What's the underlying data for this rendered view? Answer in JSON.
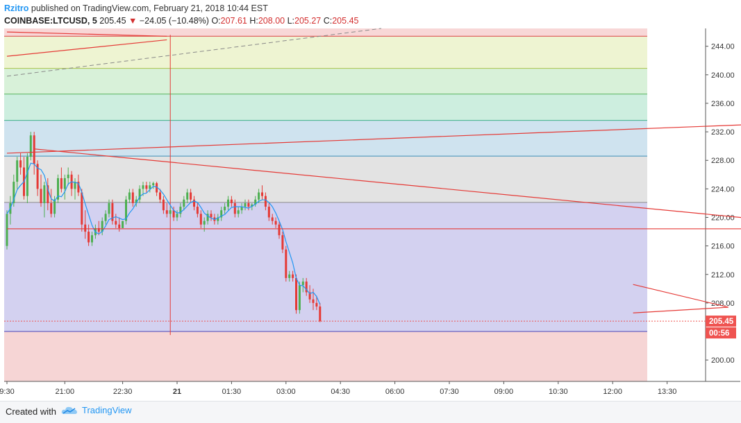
{
  "header": {
    "author": "Rzitro",
    "published": "published on TradingView.com, February 21, 2018 10:44 EST",
    "symbol": "COINBASE:LTCUSD, 5",
    "last": "205.45",
    "change_arrow": "▼",
    "change": "−24.05 (−10.48%)",
    "open_label": "O:",
    "open": "207.61",
    "high_label": "H:",
    "high": "208.00",
    "low_label": "L:",
    "low": "205.27",
    "close_label": "C:",
    "close": "205.45"
  },
  "footer": {
    "created": "Created with",
    "brand": "TradingView",
    "brand_icon": "tradingview-cloud-icon"
  },
  "colors": {
    "up": "#4caf50",
    "down": "#e53935",
    "ma": "#2196f3",
    "line": "#e53935",
    "price_tag": "#ef5350"
  },
  "chart_data": {
    "type": "candlestick",
    "ylim": [
      197,
      246.5
    ],
    "yticks": [
      "244.00",
      "240.00",
      "236.00",
      "232.00",
      "228.00",
      "224.00",
      "220.00",
      "216.00",
      "212.00",
      "208.00",
      "204.00",
      "200.00"
    ],
    "ytick_values": [
      244,
      240,
      236,
      232,
      228,
      224,
      220,
      216,
      212,
      208,
      204,
      200
    ],
    "xticks": [
      "9:30",
      "21:00",
      "22:30",
      "21",
      "01:30",
      "03:00",
      "04:30",
      "06:00",
      "07:30",
      "09:00",
      "10:30",
      "12:00",
      "13:30"
    ],
    "xtick_bars": [
      0,
      17,
      34,
      50,
      66,
      82,
      98,
      114,
      130,
      146,
      162,
      178,
      194
    ],
    "day_tick_index": 3,
    "price_label": "205.45",
    "countdown_label": "00:56",
    "fib_levels": [
      245.4,
      240.9,
      237.3,
      233.6,
      228.6,
      222.1,
      204.0
    ],
    "fib_fills": [
      "#f8d7d7",
      "#eef4d2",
      "#d8f1d9",
      "#cdeedf",
      "#cfe3ef",
      "#e3e3e3",
      "#d3d1f0",
      "#f6d5d5"
    ],
    "fib_line_colors": [
      "#d84343",
      "#a8c24b",
      "#58b45c",
      "#3fae8a",
      "#3c8fb8",
      "#8a8a8a",
      "#4b48b8"
    ],
    "candles": [
      [
        216,
        221,
        215.5,
        220.5
      ],
      [
        220.5,
        223,
        219,
        222
      ],
      [
        222,
        226,
        221.5,
        225
      ],
      [
        225,
        228.5,
        224,
        228
      ],
      [
        228,
        229,
        226,
        227
      ],
      [
        227,
        228.5,
        222.5,
        223
      ],
      [
        223,
        229,
        222,
        228.5
      ],
      [
        228.5,
        232,
        228,
        231.5
      ],
      [
        231.5,
        232,
        226,
        227.5
      ],
      [
        227.5,
        228,
        223,
        224
      ],
      [
        224,
        226,
        221.5,
        222
      ],
      [
        222,
        225,
        220,
        224.5
      ],
      [
        224.5,
        225.5,
        221,
        222
      ],
      [
        222,
        224,
        220,
        220.5
      ],
      [
        220.5,
        223,
        220,
        222.5
      ],
      [
        222.5,
        226,
        222,
        225.5
      ],
      [
        225.5,
        227,
        223.5,
        224
      ],
      [
        224,
        226,
        222.5,
        225.5
      ],
      [
        225.5,
        227,
        224.5,
        226
      ],
      [
        226,
        226.5,
        223,
        224
      ],
      [
        224,
        225.5,
        222.5,
        225
      ],
      [
        225,
        226,
        223,
        223.5
      ],
      [
        223.5,
        224,
        218,
        219
      ],
      [
        219,
        221,
        217,
        218
      ],
      [
        218,
        219,
        216,
        216.5
      ],
      [
        216.5,
        218,
        216,
        217.5
      ],
      [
        217.5,
        219,
        217,
        218.5
      ],
      [
        218.5,
        219.5,
        217.5,
        218
      ],
      [
        218,
        220,
        217.5,
        219.5
      ],
      [
        219.5,
        221,
        219,
        220.5
      ],
      [
        220.5,
        222.5,
        220,
        222
      ],
      [
        222,
        222.5,
        219,
        219.5
      ],
      [
        219.5,
        220.5,
        218.5,
        219
      ],
      [
        219,
        220,
        218,
        218.5
      ],
      [
        218.5,
        219.5,
        218.5,
        219.5
      ],
      [
        219.5,
        223,
        219,
        222.5
      ],
      [
        222.5,
        224,
        222,
        223.5
      ],
      [
        223.5,
        224,
        221.5,
        222
      ],
      [
        222,
        223,
        221.5,
        222.5
      ],
      [
        222.5,
        224.5,
        222,
        224
      ],
      [
        224,
        225,
        223,
        224.5
      ],
      [
        224.5,
        225,
        223.5,
        224
      ],
      [
        224,
        225,
        223.5,
        224.5
      ],
      [
        224.5,
        225,
        224,
        224.8
      ],
      [
        224.8,
        225,
        223,
        223.5
      ],
      [
        223.5,
        224,
        222,
        222.5
      ],
      [
        222.5,
        223,
        220.5,
        221
      ],
      [
        221,
        222,
        220,
        220.5
      ],
      [
        220.5,
        221.5,
        220,
        221
      ],
      [
        221,
        221.5,
        219.5,
        220
      ],
      [
        220,
        221,
        219.5,
        220.5
      ],
      [
        220.5,
        222,
        220,
        221.5
      ],
      [
        221.5,
        223,
        221,
        222.5
      ],
      [
        222.5,
        224,
        222,
        223.5
      ],
      [
        223.5,
        224,
        222,
        222.5
      ],
      [
        222.5,
        223,
        221,
        221.5
      ],
      [
        221.5,
        222,
        220,
        220.5
      ],
      [
        220.5,
        221,
        218.5,
        219
      ],
      [
        219,
        220,
        218,
        219.5
      ],
      [
        219.5,
        221,
        219,
        220.5
      ],
      [
        220.5,
        221,
        219.5,
        220
      ],
      [
        220,
        220.5,
        219,
        219.5
      ],
      [
        219.5,
        220.5,
        219,
        220
      ],
      [
        220,
        221.5,
        219.5,
        221
      ],
      [
        221,
        222,
        220.5,
        221.5
      ],
      [
        221.5,
        223,
        221,
        222.5
      ],
      [
        222.5,
        223,
        221.5,
        222
      ],
      [
        222,
        222.5,
        220,
        220.5
      ],
      [
        220.5,
        221.5,
        220,
        221
      ],
      [
        221,
        222,
        220.5,
        221.5
      ],
      [
        221.5,
        222.5,
        221,
        222
      ],
      [
        222,
        222.5,
        221,
        221.5
      ],
      [
        221.5,
        222,
        221,
        221.8
      ],
      [
        221.8,
        223,
        221.5,
        222.5
      ],
      [
        222.5,
        224,
        222,
        223.5
      ],
      [
        223.5,
        224.5,
        222.5,
        223
      ],
      [
        223,
        223.5,
        221,
        221.5
      ],
      [
        221.5,
        222,
        219.5,
        220
      ],
      [
        220,
        220.5,
        219,
        219.5
      ],
      [
        219.5,
        220,
        218.5,
        219
      ],
      [
        219,
        219.5,
        217,
        217.5
      ],
      [
        217.5,
        218,
        215,
        215.5
      ],
      [
        215.5,
        216,
        211,
        211.5
      ],
      [
        211.5,
        212.5,
        211,
        212
      ],
      [
        212,
        212.5,
        211,
        211.5
      ],
      [
        211.5,
        212,
        206.5,
        207
      ],
      [
        207,
        211,
        206.5,
        210.5
      ],
      [
        210.5,
        211.5,
        209.5,
        211
      ],
      [
        211,
        211.5,
        209,
        209.5
      ],
      [
        209.5,
        210.5,
        208,
        208.5
      ],
      [
        208.5,
        210,
        207,
        208
      ],
      [
        208,
        209,
        207,
        207.5
      ],
      [
        207.5,
        208,
        205.3,
        205.45
      ]
    ],
    "trendlines": [
      {
        "from": [
          0,
          246.0
        ],
        "to": [
          47,
          245.4
        ]
      },
      {
        "from": [
          0,
          242.6
        ],
        "to": [
          47,
          244.9
        ]
      },
      {
        "from": [
          0,
          229.0
        ],
        "to": [
          250,
          233.6
        ]
      },
      {
        "from": [
          8,
          229.6
        ],
        "to": [
          250,
          218.4
        ]
      },
      {
        "from": [
          0,
          218.4
        ],
        "to": [
          250,
          218.4
        ]
      },
      {
        "from": [
          184,
          210.6
        ],
        "to": [
          212,
          207.4
        ]
      },
      {
        "from": [
          184,
          206.6
        ],
        "to": [
          212,
          207.4
        ]
      }
    ],
    "dashed_line": {
      "from": [
        0,
        239.8
      ],
      "to": [
        110,
        246.5
      ]
    },
    "vertical_line_bar": 48
  }
}
